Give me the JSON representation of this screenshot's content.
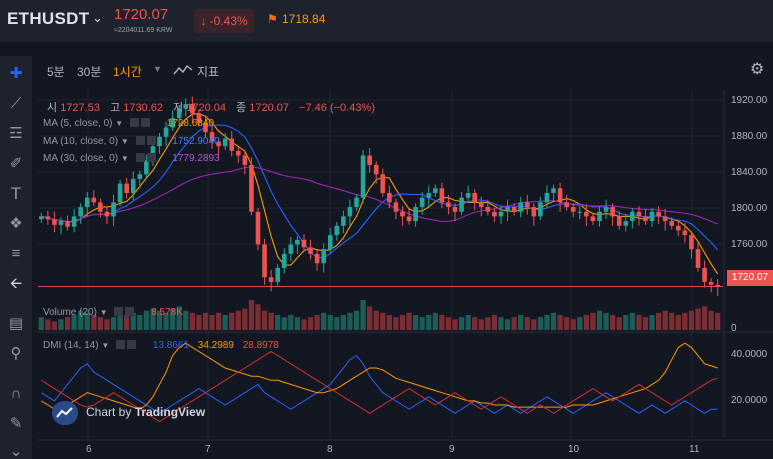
{
  "header": {
    "pair": "ETHUSDT",
    "price": "1720.07",
    "price_krw": "≈2204011.69 KRW",
    "change": "↓ -0.43%",
    "mark_price": "1718.84"
  },
  "timeframes": [
    {
      "label": "5분"
    },
    {
      "label": "30분"
    },
    {
      "label": "1시간"
    }
  ],
  "indicators_label": "지표",
  "ohlc": {
    "open_key": "시",
    "open": "1727.53",
    "high_key": "고",
    "high": "1730.62",
    "low_key": "저",
    "low": "1720.04",
    "close_key": "종",
    "close": "1720.07",
    "change": "−7.46 (−0.43%)"
  },
  "legends": {
    "ma5": "MA (5, close, 0)",
    "ma5_val": "1728.6840",
    "ma10": "MA (10, close, 0)",
    "ma10_val": "1752.9040",
    "ma30": "MA (30, close, 0)",
    "ma30_val": "1779.2893",
    "volume": "Volume (20)",
    "volume_val": "8.578K",
    "dmi": "DMI (14, 14)",
    "dmi_plus": "13.8661",
    "dmi_adx": "34.2989",
    "dmi_minus": "28.8978"
  },
  "yaxis": [
    "1920.00",
    "1880.00",
    "1840.00",
    "1800.00",
    "1760.00"
  ],
  "last_price_tag": "1720.07",
  "volume_axis": "0",
  "dmi_axis": [
    "40.0000",
    "20.0000"
  ],
  "xaxis": [
    "6",
    "7",
    "8",
    "9",
    "10",
    "11"
  ],
  "tv_badge": {
    "prefix": "Chart by ",
    "brand": "TradingView"
  },
  "colors": {
    "up": "#26a69a",
    "down": "#ef5350",
    "ma5": "#ff9800",
    "ma10": "#2962ff",
    "ma30": "#9c27b0",
    "adx": "#ff9800"
  },
  "chart_data": {
    "type": "candlestick",
    "x_ticks": [
      "6",
      "7",
      "8",
      "9",
      "10",
      "11"
    ],
    "ylim": [
      1710,
      1930
    ],
    "closes": [
      1795,
      1792,
      1786,
      1790,
      1784,
      1795,
      1805,
      1815,
      1810,
      1800,
      1795,
      1810,
      1830,
      1820,
      1835,
      1840,
      1855,
      1870,
      1880,
      1890,
      1900,
      1910,
      1915,
      1905,
      1895,
      1885,
      1875,
      1870,
      1878,
      1865,
      1860,
      1850,
      1800,
      1765,
      1730,
      1725,
      1740,
      1755,
      1765,
      1770,
      1762,
      1755,
      1745,
      1760,
      1775,
      1785,
      1795,
      1805,
      1815,
      1860,
      1850,
      1840,
      1820,
      1810,
      1800,
      1795,
      1790,
      1805,
      1815,
      1820,
      1825,
      1810,
      1805,
      1800,
      1815,
      1820,
      1810,
      1805,
      1800,
      1795,
      1800,
      1805,
      1800,
      1810,
      1805,
      1795,
      1810,
      1820,
      1825,
      1810,
      1805,
      1800,
      1800,
      1795,
      1790,
      1800,
      1805,
      1795,
      1785,
      1790,
      1800,
      1795,
      1790,
      1800,
      1795,
      1790,
      1785,
      1780,
      1775,
      1760,
      1740,
      1725,
      1722,
      1720
    ],
    "volumes": [
      6,
      5,
      4,
      5,
      6,
      7,
      9,
      8,
      7,
      6,
      5,
      6,
      8,
      7,
      8,
      7,
      9,
      10,
      9,
      8,
      10,
      11,
      9,
      8,
      7,
      8,
      7,
      8,
      7,
      8,
      9,
      10,
      14,
      12,
      9,
      8,
      7,
      6,
      7,
      6,
      5,
      6,
      7,
      8,
      7,
      6,
      7,
      8,
      9,
      14,
      11,
      9,
      8,
      7,
      6,
      7,
      8,
      7,
      6,
      7,
      8,
      7,
      6,
      5,
      6,
      7,
      6,
      5,
      6,
      7,
      6,
      5,
      6,
      7,
      6,
      5,
      6,
      7,
      8,
      7,
      6,
      5,
      6,
      7,
      8,
      9,
      8,
      7,
      6,
      7,
      8,
      7,
      6,
      7,
      8,
      9,
      8,
      7,
      8,
      9,
      10,
      11,
      9,
      8
    ],
    "dmi_plus": [
      22,
      20,
      18,
      22,
      26,
      30,
      34,
      36,
      32,
      30,
      28,
      26,
      24,
      22,
      20,
      18,
      16,
      14,
      12,
      14,
      16,
      18,
      20,
      22,
      24,
      22,
      20,
      18,
      16,
      18,
      20,
      22,
      24,
      26,
      22,
      20,
      18,
      16,
      14,
      16,
      18,
      20,
      22,
      24,
      26,
      30,
      34,
      38,
      40,
      36,
      30,
      26,
      22,
      20,
      18,
      16,
      14,
      16,
      18,
      20,
      18,
      16,
      14,
      12,
      14,
      16,
      18,
      16,
      14,
      12,
      14,
      16,
      14,
      12,
      14,
      16,
      18,
      20,
      18,
      16,
      14,
      12,
      14,
      16,
      18,
      20,
      22,
      20,
      18,
      16,
      14,
      12,
      14,
      16,
      14,
      12,
      14,
      16,
      18,
      16,
      14,
      12,
      14,
      14
    ],
    "dmi_adx": [
      18,
      16,
      14,
      15,
      16,
      18,
      20,
      22,
      21,
      20,
      19,
      18,
      17,
      16,
      15,
      14,
      16,
      20,
      26,
      32,
      40,
      44,
      46,
      44,
      42,
      40,
      38,
      36,
      34,
      33,
      32,
      31,
      30,
      30,
      29,
      28,
      28,
      27,
      26,
      25,
      24,
      23,
      22,
      22,
      23,
      24,
      26,
      28,
      30,
      32,
      34,
      34,
      33,
      31,
      29,
      28,
      27,
      26,
      25,
      24,
      23,
      22,
      21,
      20,
      19,
      18,
      18,
      17,
      17,
      16,
      16,
      16,
      15,
      15,
      15,
      15,
      15,
      15,
      15,
      15,
      15,
      16,
      16,
      16,
      16,
      17,
      18,
      19,
      20,
      21,
      22,
      23,
      24,
      26,
      28,
      32,
      38,
      44,
      46,
      44,
      40,
      36,
      35,
      34
    ],
    "dmi_minus": [
      28,
      26,
      24,
      22,
      20,
      18,
      16,
      15,
      16,
      18,
      20,
      22,
      20,
      18,
      16,
      14,
      12,
      10,
      8,
      10,
      12,
      14,
      16,
      18,
      20,
      22,
      24,
      26,
      28,
      30,
      32,
      34,
      36,
      38,
      40,
      42,
      40,
      38,
      36,
      34,
      32,
      30,
      28,
      26,
      24,
      22,
      20,
      18,
      16,
      14,
      12,
      14,
      16,
      18,
      20,
      22,
      24,
      22,
      20,
      18,
      16,
      18,
      20,
      22,
      20,
      18,
      16,
      14,
      16,
      18,
      20,
      18,
      16,
      14,
      12,
      14,
      16,
      14,
      12,
      14,
      16,
      18,
      20,
      22,
      24,
      22,
      20,
      18,
      20,
      22,
      24,
      26,
      24,
      22,
      20,
      18,
      16,
      18,
      20,
      22,
      24,
      26,
      28,
      29
    ]
  }
}
